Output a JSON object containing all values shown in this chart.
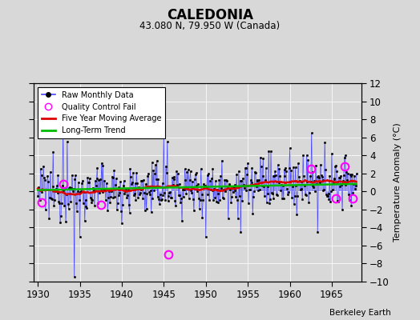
{
  "title": "CALEDONIA",
  "subtitle": "43.080 N, 79.950 W (Canada)",
  "ylabel": "Temperature Anomaly (°C)",
  "xlim": [
    1929.5,
    1968.5
  ],
  "ylim": [
    -10,
    12
  ],
  "yticks": [
    -10,
    -8,
    -6,
    -4,
    -2,
    0,
    2,
    4,
    6,
    8,
    10,
    12
  ],
  "xticks": [
    1930,
    1935,
    1940,
    1945,
    1950,
    1955,
    1960,
    1965
  ],
  "background_color": "#d8d8d8",
  "plot_bg_color": "#d8d8d8",
  "raw_line_color": "#4444ff",
  "raw_marker_color": "#000000",
  "qc_fail_color": "#ff00ff",
  "moving_avg_color": "#dd0000",
  "trend_color": "#00bb00",
  "attribution": "Berkeley Earth",
  "seed": 12345,
  "start_year": 1930,
  "n_months": 456,
  "spike_down_idx": 52,
  "spike_down_val": -9.5,
  "spike_up_idx": 36,
  "spike_up_val": 6.5,
  "spike_up2_idx": 42,
  "spike_up2_val": 5.5,
  "spike_up3_idx": 180,
  "spike_up3_val": 6.2,
  "spike_up4_idx": 185,
  "spike_up4_val": 5.5,
  "qc_fail_times": [
    1930.5,
    1933.0,
    1937.5,
    1945.5,
    1962.5,
    1965.5,
    1966.5,
    1967.5
  ],
  "qc_fail_vals": [
    -1.2,
    0.8,
    -1.5,
    -7.0,
    2.5,
    -0.8,
    2.8,
    -0.8
  ],
  "trend_intercept": -0.2,
  "trend_slope": 0.003
}
